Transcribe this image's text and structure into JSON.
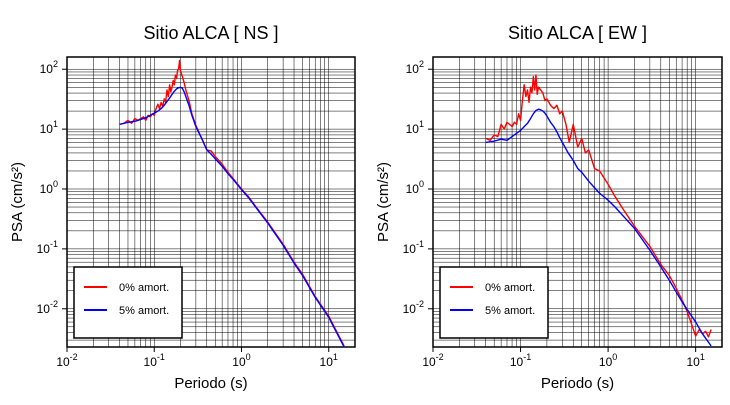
{
  "chart_data": [
    {
      "type": "line",
      "title": "Sitio ALCA [ NS ]",
      "xlabel": "Periodo (s)",
      "ylabel": "PSA (cm/s²)",
      "x_scale": "log",
      "y_scale": "log",
      "xlim": [
        0.01,
        20
      ],
      "ylim": [
        0.0023,
        160
      ],
      "grid": true,
      "legend_position": "bottom-left",
      "series": [
        {
          "name": "0% amort.",
          "color": "#ff0000",
          "x": [
            0.04,
            0.045,
            0.05,
            0.055,
            0.06,
            0.065,
            0.07,
            0.075,
            0.08,
            0.085,
            0.09,
            0.095,
            0.1,
            0.105,
            0.11,
            0.115,
            0.12,
            0.125,
            0.13,
            0.135,
            0.14,
            0.145,
            0.15,
            0.155,
            0.16,
            0.165,
            0.17,
            0.175,
            0.18,
            0.185,
            0.19,
            0.195,
            0.2,
            0.21,
            0.22,
            0.23,
            0.25,
            0.27,
            0.3,
            0.35,
            0.4,
            0.45,
            0.5,
            0.6,
            0.7,
            0.8,
            1.0,
            1.2,
            1.5,
            2.0,
            3.0,
            4.0,
            5.0,
            7.0,
            10.0,
            12.0,
            15.0
          ],
          "y": [
            12,
            12.5,
            14,
            12.5,
            15,
            14,
            15,
            16,
            14,
            17,
            16,
            18,
            17,
            22,
            26,
            22,
            28,
            24,
            32,
            28,
            45,
            35,
            55,
            42,
            50,
            65,
            55,
            80,
            70,
            95,
            100,
            140,
            95,
            75,
            60,
            45,
            30,
            18,
            11.5,
            7,
            4.5,
            4.3,
            3.5,
            2.6,
            1.9,
            1.5,
            1.0,
            0.75,
            0.48,
            0.28,
            0.12,
            0.06,
            0.038,
            0.016,
            0.0075,
            0.0045,
            0.0024
          ]
        },
        {
          "name": "5% amort.",
          "color": "#0000ff",
          "x": [
            0.04,
            0.05,
            0.06,
            0.07,
            0.08,
            0.09,
            0.1,
            0.11,
            0.12,
            0.13,
            0.14,
            0.15,
            0.16,
            0.17,
            0.18,
            0.19,
            0.2,
            0.21,
            0.22,
            0.23,
            0.25,
            0.27,
            0.3,
            0.35,
            0.4,
            0.45,
            0.5,
            0.6,
            0.7,
            0.8,
            1.0,
            1.2,
            1.5,
            2.0,
            3.0,
            4.0,
            5.0,
            7.0,
            10.0,
            12.0,
            15.0
          ],
          "y": [
            12,
            13,
            13.5,
            14.5,
            15.5,
            17,
            18.5,
            20,
            22,
            25,
            29,
            33,
            38,
            43,
            47,
            49,
            50,
            48,
            42,
            35,
            25,
            17,
            11,
            7,
            4.5,
            3.8,
            3.2,
            2.4,
            1.8,
            1.45,
            0.98,
            0.72,
            0.47,
            0.27,
            0.115,
            0.058,
            0.036,
            0.0155,
            0.0072,
            0.0043,
            0.0023
          ]
        }
      ]
    },
    {
      "type": "line",
      "title": "Sitio ALCA [ EW ]",
      "xlabel": "Periodo (s)",
      "ylabel": "PSA (cm/s²)",
      "x_scale": "log",
      "y_scale": "log",
      "xlim": [
        0.01,
        20
      ],
      "ylim": [
        0.0023,
        160
      ],
      "grid": true,
      "legend_position": "bottom-left",
      "series": [
        {
          "name": "0% amort.",
          "color": "#ff0000",
          "x": [
            0.04,
            0.045,
            0.05,
            0.055,
            0.06,
            0.065,
            0.07,
            0.075,
            0.08,
            0.085,
            0.09,
            0.095,
            0.1,
            0.105,
            0.11,
            0.115,
            0.12,
            0.125,
            0.13,
            0.135,
            0.14,
            0.145,
            0.15,
            0.155,
            0.16,
            0.17,
            0.18,
            0.19,
            0.2,
            0.22,
            0.24,
            0.26,
            0.28,
            0.3,
            0.33,
            0.36,
            0.4,
            0.45,
            0.5,
            0.55,
            0.6,
            0.7,
            0.8,
            1.0,
            1.2,
            1.5,
            2.0,
            3.0,
            4.0,
            5.0,
            6.0,
            7.0,
            8.0,
            9.0,
            10.0,
            11.0,
            12.0,
            13.0,
            14.0,
            15.0
          ],
          "y": [
            7,
            6.5,
            8,
            7.5,
            12,
            10,
            13,
            12,
            11,
            13,
            12,
            18,
            14,
            30,
            55,
            35,
            45,
            28,
            50,
            40,
            75,
            45,
            80,
            38,
            50,
            45,
            40,
            30,
            32,
            25,
            22,
            25,
            18,
            20,
            12,
            6,
            12,
            5,
            7,
            4,
            4.5,
            2.2,
            2.0,
            1.2,
            0.75,
            0.45,
            0.24,
            0.11,
            0.055,
            0.036,
            0.022,
            0.014,
            0.009,
            0.0055,
            0.0035,
            0.0045,
            0.0038,
            0.0042,
            0.0034,
            0.0045
          ]
        },
        {
          "name": "5% amort.",
          "color": "#0000ff",
          "x": [
            0.04,
            0.05,
            0.06,
            0.07,
            0.08,
            0.09,
            0.1,
            0.11,
            0.12,
            0.13,
            0.14,
            0.15,
            0.16,
            0.17,
            0.18,
            0.19,
            0.2,
            0.22,
            0.24,
            0.26,
            0.28,
            0.3,
            0.35,
            0.4,
            0.45,
            0.5,
            0.6,
            0.7,
            0.8,
            1.0,
            1.2,
            1.5,
            2.0,
            3.0,
            4.0,
            5.0,
            7.0,
            10.0,
            12.0,
            15.0
          ],
          "y": [
            6,
            6.3,
            6.8,
            6.5,
            7.5,
            8.5,
            9.5,
            11,
            12.5,
            15,
            18,
            20.5,
            21.5,
            21,
            20,
            18.5,
            16.5,
            13,
            11,
            9,
            7.2,
            6,
            4,
            3,
            2.2,
            1.9,
            1.35,
            1.05,
            0.85,
            0.65,
            0.5,
            0.35,
            0.22,
            0.095,
            0.05,
            0.03,
            0.013,
            0.006,
            0.0038,
            0.0024
          ]
        }
      ]
    }
  ]
}
